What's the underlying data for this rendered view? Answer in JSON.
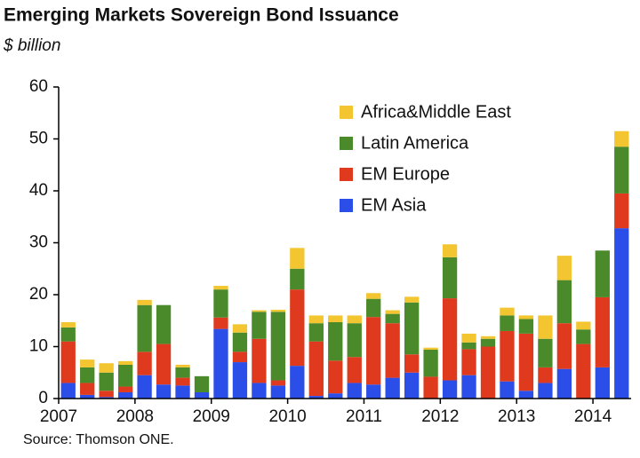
{
  "chart_data": {
    "type": "stacked-bar",
    "title": "Emerging Markets Sovereign Bond Issuance",
    "subtitle": "$ billion",
    "source": "Source: Thomson ONE.",
    "categories": [
      "2007",
      null,
      null,
      null,
      "2008",
      null,
      null,
      null,
      "2009",
      null,
      null,
      null,
      "2010",
      null,
      null,
      null,
      "2011",
      null,
      null,
      null,
      "2012",
      null,
      null,
      null,
      "2013",
      null,
      null,
      null,
      "2014",
      null
    ],
    "series": [
      {
        "name": "EM Asia",
        "color": "#2b4de8",
        "values": [
          3,
          0.7,
          0.3,
          1.2,
          4.5,
          2.7,
          2.5,
          1.2,
          13.4,
          7,
          3,
          2.5,
          6.3,
          0.5,
          1,
          3,
          2.7,
          4,
          5,
          0,
          3.5,
          4.5,
          0,
          3.3,
          1.5,
          3,
          5.7,
          0,
          6,
          32.8
        ]
      },
      {
        "name": "EM Europe",
        "color": "#e03a1e",
        "values": [
          8,
          2.3,
          1.2,
          1.1,
          4.5,
          7.8,
          1.5,
          0,
          2.2,
          2,
          8.5,
          1,
          14.7,
          10.5,
          6.3,
          5,
          13,
          10.5,
          3.5,
          4.2,
          15.8,
          5,
          10,
          9.7,
          11,
          3,
          8.8,
          10.5,
          13.5,
          6.7
        ]
      },
      {
        "name": "Latin America",
        "color": "#4a8a2a",
        "values": [
          2.7,
          3,
          3.5,
          4.2,
          9,
          7.5,
          2,
          3.1,
          5.4,
          3.7,
          5.2,
          13.2,
          4,
          3.5,
          7.4,
          6.5,
          3.5,
          1.8,
          10,
          5.2,
          7.9,
          1.3,
          1.5,
          3,
          2.8,
          5.5,
          8.3,
          2.8,
          9,
          9
        ]
      },
      {
        "name": "Africa&Middle East",
        "color": "#f2c531",
        "values": [
          1,
          1.5,
          1.8,
          0.7,
          1,
          0,
          0.5,
          0,
          0.7,
          1.6,
          0.3,
          0.4,
          4,
          1.5,
          1.3,
          1.5,
          1.1,
          0.7,
          1.1,
          0.4,
          2.5,
          1.7,
          0.5,
          1.5,
          0.7,
          4.5,
          4.7,
          1.5,
          0,
          3
        ]
      }
    ],
    "ylim": [
      0,
      60
    ],
    "yticks": [
      0,
      10,
      20,
      30,
      40,
      50,
      60
    ],
    "grid": false,
    "legend": "top-right"
  }
}
